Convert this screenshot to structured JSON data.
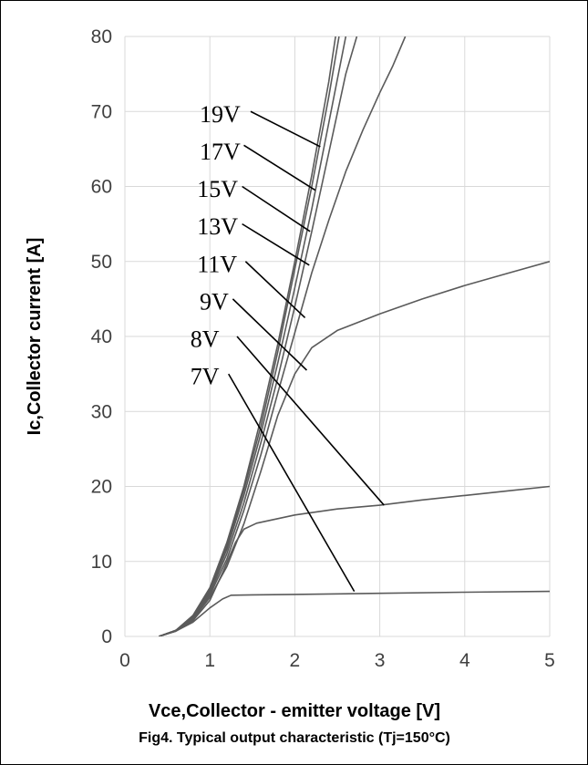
{
  "chart_data": {
    "type": "line",
    "xlabel": "Vce,Collector - emitter voltage [V]",
    "ylabel": "Ic,Collector current [A]",
    "caption": "Fig4. Typical output characteristic (Tj=150°C)",
    "xlim": [
      0,
      5
    ],
    "ylim": [
      0,
      80
    ],
    "xticks": [
      "0",
      "1",
      "2",
      "3",
      "4",
      "5"
    ],
    "yticks": [
      "0",
      "10",
      "20",
      "30",
      "40",
      "50",
      "60",
      "70",
      "80"
    ],
    "grid": "vertical and horizontal",
    "line_color": "#5a5a5a",
    "series": [
      {
        "name": "19V",
        "points": [
          [
            0.4,
            0
          ],
          [
            0.6,
            0.8
          ],
          [
            0.8,
            2.8
          ],
          [
            1.0,
            6.5
          ],
          [
            1.2,
            12.5
          ],
          [
            1.4,
            20
          ],
          [
            1.6,
            29
          ],
          [
            1.8,
            39
          ],
          [
            2.0,
            50
          ],
          [
            2.2,
            61.5
          ],
          [
            2.4,
            74
          ],
          [
            2.48,
            80
          ]
        ]
      },
      {
        "name": "17V",
        "points": [
          [
            0.4,
            0
          ],
          [
            0.6,
            0.8
          ],
          [
            0.8,
            2.7
          ],
          [
            1.0,
            6.3
          ],
          [
            1.2,
            12
          ],
          [
            1.4,
            19.5
          ],
          [
            1.6,
            28
          ],
          [
            1.8,
            38
          ],
          [
            2.0,
            49
          ],
          [
            2.2,
            60
          ],
          [
            2.4,
            72
          ],
          [
            2.52,
            80
          ]
        ]
      },
      {
        "name": "15V",
        "points": [
          [
            0.4,
            0
          ],
          [
            0.6,
            0.8
          ],
          [
            0.8,
            2.6
          ],
          [
            1.0,
            6.1
          ],
          [
            1.2,
            11.6
          ],
          [
            1.4,
            18.8
          ],
          [
            1.6,
            27
          ],
          [
            1.8,
            36.5
          ],
          [
            2.0,
            46.5
          ],
          [
            2.2,
            57
          ],
          [
            2.4,
            68.5
          ],
          [
            2.6,
            80
          ]
        ]
      },
      {
        "name": "13V",
        "points": [
          [
            0.4,
            0
          ],
          [
            0.6,
            0.8
          ],
          [
            0.8,
            2.5
          ],
          [
            1.0,
            5.8
          ],
          [
            1.2,
            11
          ],
          [
            1.4,
            17.8
          ],
          [
            1.6,
            25.8
          ],
          [
            1.8,
            34.5
          ],
          [
            2.0,
            44
          ],
          [
            2.2,
            54
          ],
          [
            2.4,
            64.5
          ],
          [
            2.6,
            75
          ],
          [
            2.73,
            80
          ]
        ]
      },
      {
        "name": "11V",
        "points": [
          [
            0.4,
            0
          ],
          [
            0.6,
            0.8
          ],
          [
            0.8,
            2.4
          ],
          [
            1.0,
            5.5
          ],
          [
            1.2,
            10.3
          ],
          [
            1.4,
            16.8
          ],
          [
            1.6,
            24.2
          ],
          [
            1.8,
            32.5
          ],
          [
            2.0,
            40.5
          ],
          [
            2.2,
            48.5
          ],
          [
            2.4,
            55.5
          ],
          [
            2.6,
            62
          ],
          [
            2.8,
            67.5
          ],
          [
            3.0,
            72.5
          ],
          [
            3.15,
            76
          ],
          [
            3.3,
            80
          ]
        ]
      },
      {
        "name": "9V",
        "points": [
          [
            0.4,
            0
          ],
          [
            0.6,
            0.8
          ],
          [
            0.8,
            2.3
          ],
          [
            1.0,
            5.2
          ],
          [
            1.2,
            9.3
          ],
          [
            1.4,
            15
          ],
          [
            1.6,
            22
          ],
          [
            1.8,
            29.5
          ],
          [
            2.0,
            35
          ],
          [
            2.2,
            38.5
          ],
          [
            2.5,
            40.8
          ],
          [
            3.0,
            43
          ],
          [
            3.5,
            45
          ],
          [
            4.0,
            46.8
          ],
          [
            4.5,
            48.4
          ],
          [
            5.0,
            50
          ]
        ]
      },
      {
        "name": "8V",
        "points": [
          [
            0.4,
            0
          ],
          [
            0.6,
            0.7
          ],
          [
            0.8,
            2.1
          ],
          [
            1.0,
            4.8
          ],
          [
            1.15,
            8.5
          ],
          [
            1.3,
            12.5
          ],
          [
            1.4,
            14.3
          ],
          [
            1.55,
            15.1
          ],
          [
            2.0,
            16.2
          ],
          [
            2.5,
            17
          ],
          [
            3.0,
            17.5
          ],
          [
            3.5,
            18.2
          ],
          [
            4.0,
            18.8
          ],
          [
            4.5,
            19.4
          ],
          [
            5.0,
            20
          ]
        ]
      },
      {
        "name": "7V",
        "points": [
          [
            0.4,
            0
          ],
          [
            0.6,
            0.7
          ],
          [
            0.8,
            1.9
          ],
          [
            1.0,
            3.8
          ],
          [
            1.15,
            5
          ],
          [
            1.25,
            5.5
          ],
          [
            1.5,
            5.55
          ],
          [
            2.0,
            5.6
          ],
          [
            3.0,
            5.75
          ],
          [
            4.0,
            5.9
          ],
          [
            5.0,
            6
          ]
        ]
      }
    ],
    "annotations": [
      {
        "label": "19V",
        "text_at": [
          0.88,
          68.6
        ],
        "line_from": [
          1.48,
          70
        ],
        "line_to": [
          2.3,
          65.3
        ]
      },
      {
        "label": "17V",
        "text_at": [
          0.88,
          63.6
        ],
        "line_from": [
          1.4,
          65.5
        ],
        "line_to": [
          2.24,
          59.5
        ]
      },
      {
        "label": "15V",
        "text_at": [
          0.85,
          58.6
        ],
        "line_from": [
          1.38,
          60
        ],
        "line_to": [
          2.18,
          54
        ]
      },
      {
        "label": "13V",
        "text_at": [
          0.85,
          53.6
        ],
        "line_from": [
          1.38,
          55
        ],
        "line_to": [
          2.17,
          49.5
        ]
      },
      {
        "label": "11V",
        "text_at": [
          0.85,
          48.6
        ],
        "line_from": [
          1.42,
          50
        ],
        "line_to": [
          2.12,
          42.5
        ]
      },
      {
        "label": "9V",
        "text_at": [
          0.88,
          43.6
        ],
        "line_from": [
          1.27,
          45
        ],
        "line_to": [
          2.14,
          35.5
        ]
      },
      {
        "label": "8V",
        "text_at": [
          0.77,
          38.6
        ],
        "line_from": [
          1.32,
          40
        ],
        "line_to": [
          3.05,
          17.5
        ]
      },
      {
        "label": "7V",
        "text_at": [
          0.77,
          33.6
        ],
        "line_from": [
          1.22,
          35
        ],
        "line_to": [
          2.7,
          6
        ]
      }
    ]
  }
}
